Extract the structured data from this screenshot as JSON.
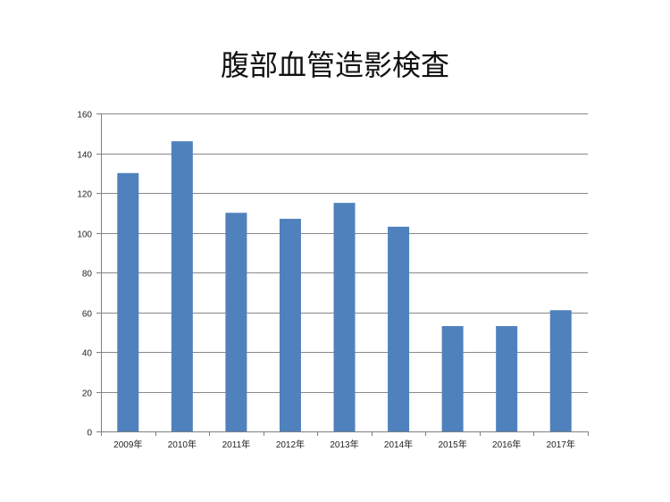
{
  "chart_data": {
    "type": "bar",
    "title": "腹部血管造影検査",
    "xlabel": "",
    "ylabel": "",
    "categories": [
      "2009年",
      "2010年",
      "2011年",
      "2012年",
      "2013年",
      "2014年",
      "2015年",
      "2016年",
      "2017年"
    ],
    "values": [
      130,
      146,
      110,
      107,
      115,
      103,
      53,
      53,
      61
    ],
    "ylim": [
      0,
      160
    ],
    "yticks": [
      0,
      20,
      40,
      60,
      80,
      100,
      120,
      140,
      160
    ],
    "yticks_labels": [
      "0",
      "20",
      "40",
      "60",
      "80",
      "100",
      "120",
      "140",
      "160"
    ],
    "grid": true,
    "legend": "none",
    "colors": {
      "bar": "#4F81BD",
      "grid": "#888888",
      "axis": "#808080",
      "text": "#222222"
    }
  }
}
